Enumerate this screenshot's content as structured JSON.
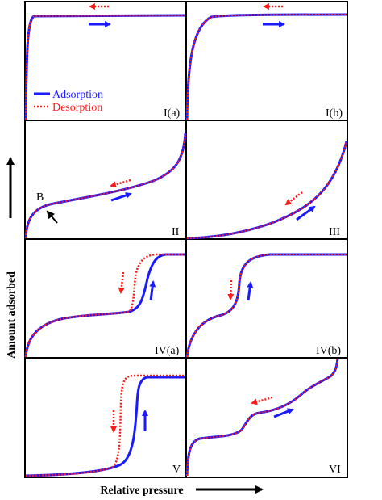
{
  "figure": {
    "x_axis_label": "Relative pressure",
    "y_axis_label": "Amount adsorbed"
  },
  "legend": {
    "adsorption": "Adsorption",
    "desorption": "Desorption"
  },
  "colors": {
    "adsorption": "#1a1aff",
    "desorption": "#ff1a1a",
    "frame": "#000000"
  },
  "panels": [
    {
      "id": "Ia",
      "label": "I(a)"
    },
    {
      "id": "Ib",
      "label": "I(b)"
    },
    {
      "id": "II",
      "label": "II",
      "point_label": "B"
    },
    {
      "id": "III",
      "label": "III"
    },
    {
      "id": "IVa",
      "label": "IV(a)"
    },
    {
      "id": "IVb",
      "label": "IV(b)"
    },
    {
      "id": "V",
      "label": "V"
    },
    {
      "id": "VI",
      "label": "VI"
    }
  ]
}
